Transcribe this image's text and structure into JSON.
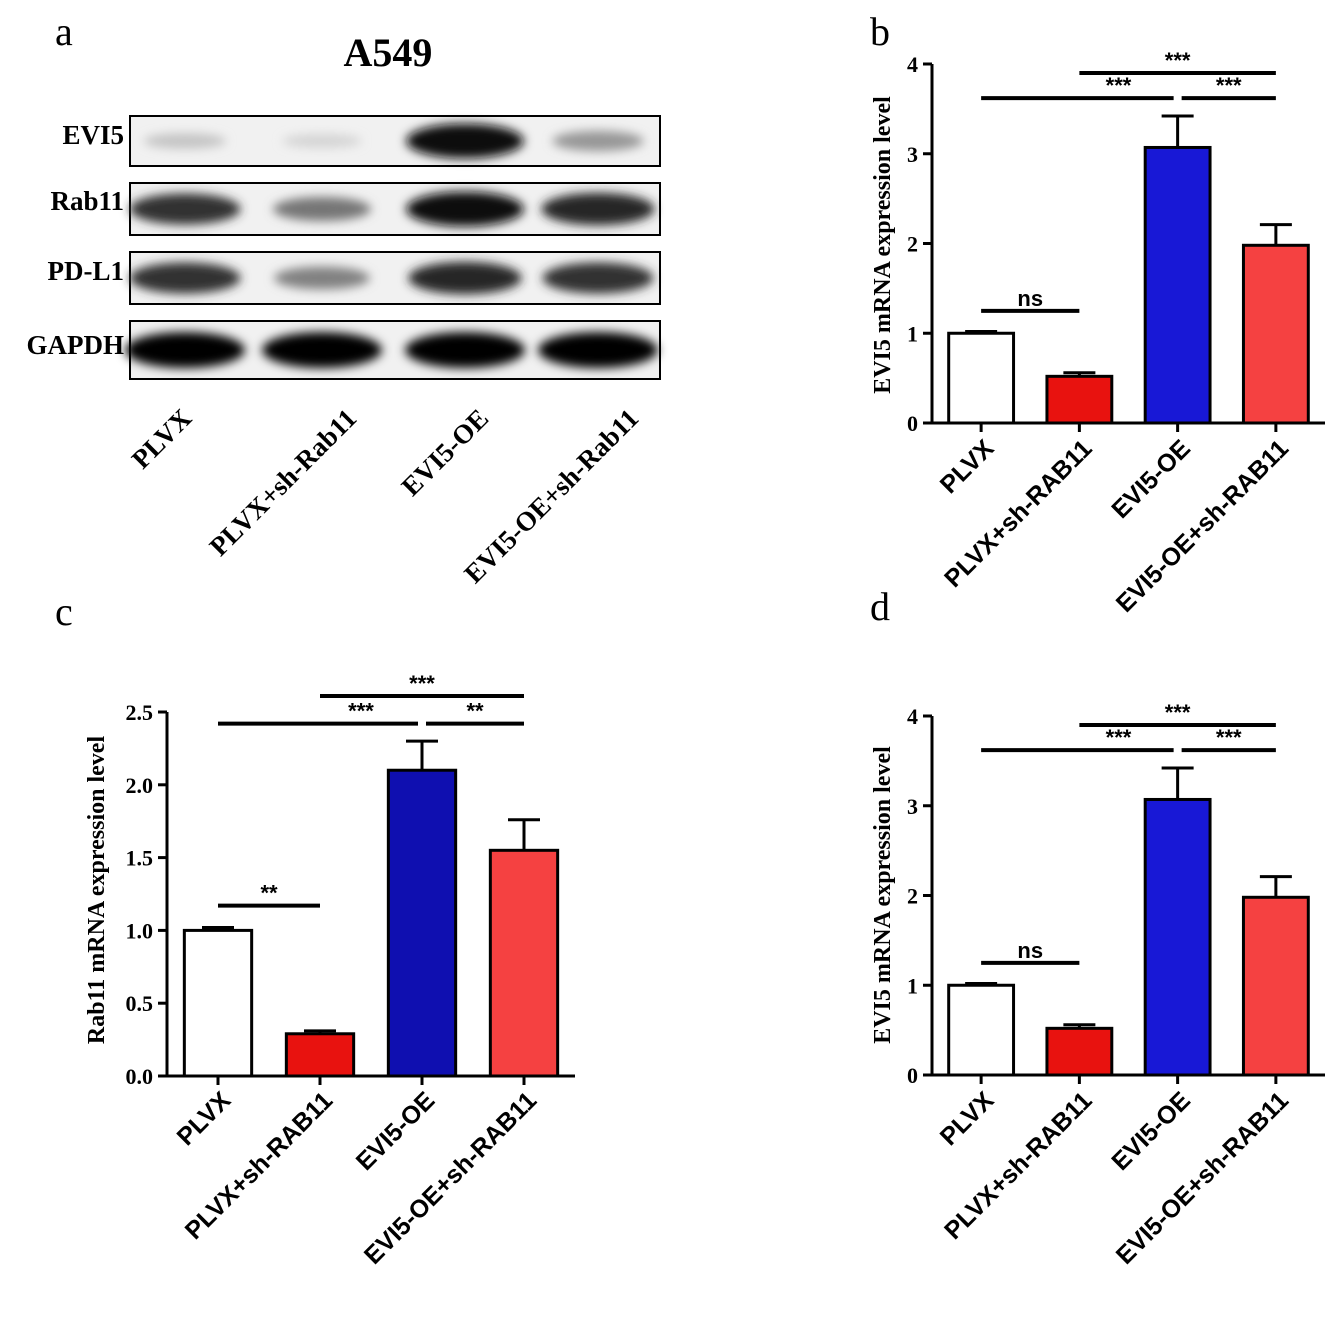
{
  "panel_a": {
    "letter": "a",
    "title": "A549",
    "rows": [
      "EVI5",
      "Rab11",
      "PD-L1",
      "GAPDH"
    ],
    "lanes": [
      "PLVX",
      "PLVX+sh-Rab11",
      "EVI5-OE",
      "EVI5-OE+sh-Rab11"
    ],
    "band_intensity": [
      [
        0.15,
        0.08,
        0.95,
        0.35
      ],
      [
        0.8,
        0.5,
        0.95,
        0.85
      ],
      [
        0.8,
        0.45,
        0.85,
        0.8
      ],
      [
        1.0,
        1.0,
        1.0,
        1.0
      ]
    ]
  },
  "chart_data": [
    {
      "id": "b",
      "type": "bar",
      "letter": "b",
      "categories": [
        "PLVX",
        "PLVX+sh-RAB11",
        "EVI5-OE",
        "EVI5-OE+sh-RAB11"
      ],
      "values": [
        1.0,
        0.52,
        3.07,
        1.98
      ],
      "errors": [
        0.02,
        0.04,
        0.35,
        0.23
      ],
      "colors": [
        "#ffffff",
        "#e8120f",
        "#1818d6",
        "#f54141"
      ],
      "ylabel": "EVI5 mRNA expression level",
      "ylim": [
        0,
        4
      ],
      "yticks": [
        "0",
        "1",
        "2",
        "3",
        "4"
      ],
      "significance": [
        {
          "from": 0,
          "to": 1,
          "label": "ns",
          "y": 1.25
        },
        {
          "from": 0,
          "to": 2,
          "label": "***",
          "y": 3.62
        },
        {
          "from": 2,
          "to": 3,
          "label": "***",
          "y": 3.62
        },
        {
          "from": 1,
          "to": 3,
          "label": "***",
          "y": 3.9
        }
      ]
    },
    {
      "id": "c",
      "type": "bar",
      "letter": "c",
      "categories": [
        "PLVX",
        "PLVX+sh-RAB11",
        "EVI5-OE",
        "EVI5-OE+sh-RAB11"
      ],
      "values": [
        1.0,
        0.29,
        2.1,
        1.55
      ],
      "errors": [
        0.02,
        0.02,
        0.2,
        0.21
      ],
      "colors": [
        "#ffffff",
        "#e8120f",
        "#0f0fb0",
        "#f54141"
      ],
      "ylabel": "Rab11 mRNA expression level",
      "ylim": [
        0,
        2.5
      ],
      "yticks": [
        "0.0",
        "0.5",
        "1.0",
        "1.5",
        "2.0",
        "2.5"
      ],
      "significance": [
        {
          "from": 0,
          "to": 1,
          "label": "**",
          "y": 1.17
        },
        {
          "from": 0,
          "to": 2,
          "label": "***",
          "y": 2.42
        },
        {
          "from": 2,
          "to": 3,
          "label": "**",
          "y": 2.42
        },
        {
          "from": 1,
          "to": 3,
          "label": "***",
          "y": 2.61
        }
      ]
    },
    {
      "id": "d",
      "type": "bar",
      "letter": "d",
      "categories": [
        "PLVX",
        "PLVX+sh-RAB11",
        "EVI5-OE",
        "EVI5-OE+sh-RAB11"
      ],
      "values": [
        1.0,
        0.52,
        3.07,
        1.98
      ],
      "errors": [
        0.02,
        0.04,
        0.35,
        0.23
      ],
      "colors": [
        "#ffffff",
        "#e8120f",
        "#1818d6",
        "#f54141"
      ],
      "ylabel": "EVI5 mRNA expression level",
      "ylim": [
        0,
        4
      ],
      "yticks": [
        "0",
        "1",
        "2",
        "3",
        "4"
      ],
      "significance": [
        {
          "from": 0,
          "to": 1,
          "label": "ns",
          "y": 1.25
        },
        {
          "from": 0,
          "to": 2,
          "label": "***",
          "y": 3.62
        },
        {
          "from": 2,
          "to": 3,
          "label": "***",
          "y": 3.62
        },
        {
          "from": 1,
          "to": 3,
          "label": "***",
          "y": 3.9
        }
      ]
    }
  ]
}
